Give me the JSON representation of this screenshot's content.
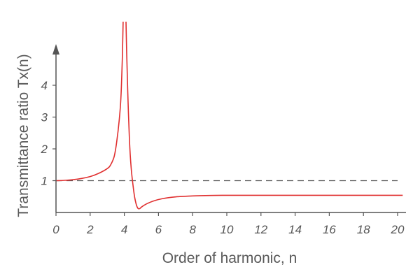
{
  "chart_data": {
    "type": "line",
    "title": "",
    "xlabel": "Order of harmonic, n",
    "ylabel": "Transmittance ratio Tx(n)",
    "xlim": [
      0,
      20.3
    ],
    "ylim": [
      0,
      5.3
    ],
    "x_ticks": [
      0,
      2,
      4,
      6,
      8,
      10,
      12,
      14,
      16,
      18,
      20
    ],
    "x_tick_labels": [
      "0",
      "2",
      "4",
      "6",
      "8",
      "10",
      "12",
      "14",
      "16",
      "18",
      "20"
    ],
    "y_ticks": [
      1,
      2,
      3,
      4
    ],
    "y_tick_labels": [
      "1",
      "2",
      "3",
      "4"
    ],
    "reference_line": {
      "y": 1,
      "style": "dashed"
    },
    "series": [
      {
        "color": "#e03030",
        "points": [
          [
            0.0,
            1.0
          ],
          [
            0.5,
            1.01
          ],
          [
            1.0,
            1.03
          ],
          [
            1.5,
            1.07
          ],
          [
            2.0,
            1.13
          ],
          [
            2.5,
            1.23
          ],
          [
            3.0,
            1.38
          ],
          [
            3.2,
            1.5
          ],
          [
            3.4,
            1.75
          ],
          [
            3.55,
            2.2
          ],
          [
            3.7,
            2.9
          ],
          [
            3.8,
            3.6
          ],
          [
            3.88,
            4.8
          ],
          [
            3.93,
            6.0
          ]
        ]
      },
      {
        "color": "#e03030",
        "points": [
          [
            4.1,
            6.0
          ],
          [
            4.14,
            5.0
          ],
          [
            4.2,
            3.8
          ],
          [
            4.3,
            2.3
          ],
          [
            4.4,
            1.4
          ],
          [
            4.5,
            0.9
          ],
          [
            4.6,
            0.5
          ],
          [
            4.7,
            0.25
          ],
          [
            4.8,
            0.13
          ],
          [
            4.9,
            0.12
          ],
          [
            5.0,
            0.17
          ],
          [
            5.3,
            0.27
          ],
          [
            5.7,
            0.36
          ],
          [
            6.2,
            0.43
          ],
          [
            7.0,
            0.49
          ],
          [
            8.0,
            0.52
          ],
          [
            9.0,
            0.535
          ],
          [
            10.0,
            0.54
          ],
          [
            12.0,
            0.54
          ],
          [
            14.0,
            0.54
          ],
          [
            16.0,
            0.54
          ],
          [
            18.0,
            0.54
          ],
          [
            20.3,
            0.54
          ]
        ]
      }
    ],
    "colors": {
      "curve": "#e03030",
      "axes": "#555555",
      "reference": "#555555"
    }
  }
}
